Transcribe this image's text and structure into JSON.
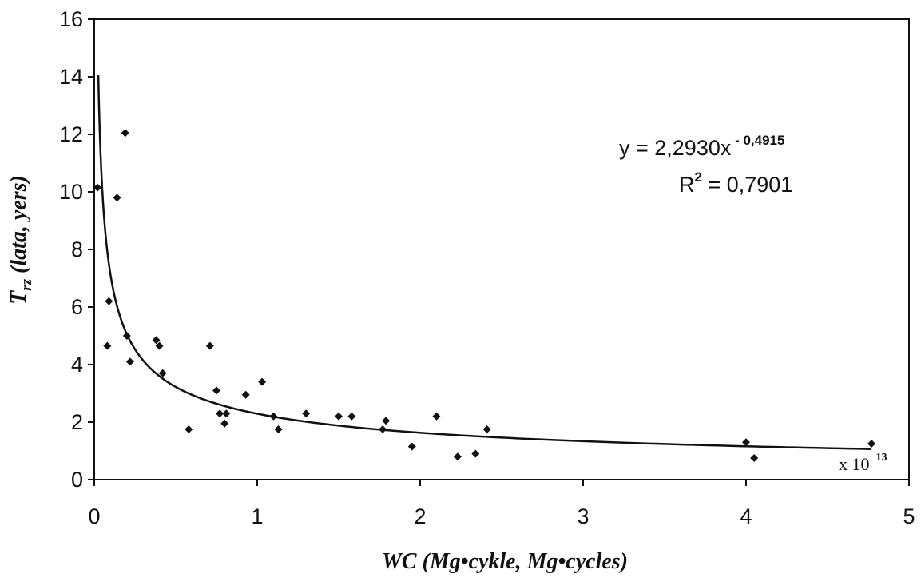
{
  "chart_data": {
    "type": "scatter",
    "xlabel": "WC  (Mg•cykle, Mg•cycles)",
    "ylabel_main": "T",
    "ylabel_sub": "rz",
    "ylabel_rest": "  (lata, yers)",
    "xlim": [
      0,
      5
    ],
    "ylim": [
      0,
      16
    ],
    "x_ticks": [
      0,
      1,
      2,
      3,
      4,
      5
    ],
    "y_ticks": [
      0,
      2,
      4,
      6,
      8,
      10,
      12,
      14,
      16
    ],
    "x_multiplier_base": "x 10",
    "x_multiplier_exp": "13",
    "grid": false,
    "points": [
      {
        "x": 0.02,
        "y": 10.15
      },
      {
        "x": 0.08,
        "y": 4.65
      },
      {
        "x": 0.09,
        "y": 6.2
      },
      {
        "x": 0.14,
        "y": 9.8
      },
      {
        "x": 0.19,
        "y": 12.05
      },
      {
        "x": 0.2,
        "y": 5.0
      },
      {
        "x": 0.22,
        "y": 4.1
      },
      {
        "x": 0.38,
        "y": 4.85
      },
      {
        "x": 0.4,
        "y": 4.65
      },
      {
        "x": 0.42,
        "y": 3.7
      },
      {
        "x": 0.58,
        "y": 1.75
      },
      {
        "x": 0.71,
        "y": 4.65
      },
      {
        "x": 0.75,
        "y": 3.1
      },
      {
        "x": 0.77,
        "y": 2.3
      },
      {
        "x": 0.8,
        "y": 1.95
      },
      {
        "x": 0.81,
        "y": 2.3
      },
      {
        "x": 0.93,
        "y": 2.95
      },
      {
        "x": 1.03,
        "y": 3.4
      },
      {
        "x": 1.1,
        "y": 2.2
      },
      {
        "x": 1.13,
        "y": 1.75
      },
      {
        "x": 1.3,
        "y": 2.3
      },
      {
        "x": 1.5,
        "y": 2.2
      },
      {
        "x": 1.58,
        "y": 2.2
      },
      {
        "x": 1.77,
        "y": 1.75
      },
      {
        "x": 1.79,
        "y": 2.05
      },
      {
        "x": 1.95,
        "y": 1.15
      },
      {
        "x": 2.1,
        "y": 2.2
      },
      {
        "x": 2.23,
        "y": 0.8
      },
      {
        "x": 2.34,
        "y": 0.9
      },
      {
        "x": 2.41,
        "y": 1.75
      },
      {
        "x": 4.0,
        "y": 1.3
      },
      {
        "x": 4.05,
        "y": 0.75
      },
      {
        "x": 4.77,
        "y": 1.25
      }
    ],
    "trendline": {
      "type": "power",
      "a": 2.293,
      "b": -0.4915,
      "x_start": 0.025,
      "x_end": 4.77,
      "equation_base": "y = 2,2930x",
      "equation_exp": " - 0,4915",
      "r2_base": "R",
      "r2_exp": "2",
      "r2_value": " = 0,7901"
    },
    "colors": {
      "marker": "#111111",
      "line": "#111111",
      "axis": "#111111"
    }
  }
}
